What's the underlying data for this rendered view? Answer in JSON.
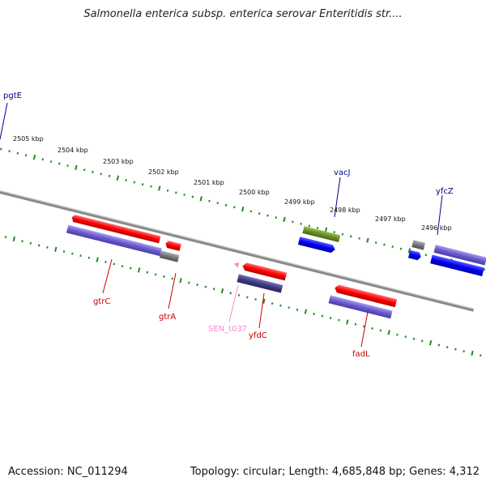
{
  "title": "Salmonella enterica subsp. enterica serovar Enteritidis str....",
  "footer": {
    "accession": "Accession: NC_011294",
    "summary": "Topology: circular; Length: 4,685,848 bp; Genes: 4,312"
  },
  "colors": {
    "forward_cds": "#ff0000",
    "forward_hit": "#6a5acd",
    "reverse_cds": "#0000ee",
    "reverse_hit": "#6b8e23",
    "grey_feature": "#777777",
    "ruler_dots": "#228b22",
    "backbone": "#888888",
    "forward_label": "#cc0000",
    "reverse_label": "#00008b",
    "pink_label": "#ff88cc"
  },
  "scale_labels": [
    "2505 kbp",
    "2504 kbp",
    "2503 kbp",
    "2502 kbp",
    "2501 kbp",
    "2500 kbp",
    "2499 kbp",
    "2498 kbp",
    "2497 kbp",
    "2496 kbp"
  ],
  "gene_labels": {
    "pgtE": "pgtE",
    "vacJ": "vacJ",
    "yfcZ": "yfcZ",
    "gtrC": "gtrC",
    "gtrA": "gtrA",
    "SEN_t037": "SEN_t037",
    "yfdC": "yfdC",
    "fadL": "fadL"
  }
}
